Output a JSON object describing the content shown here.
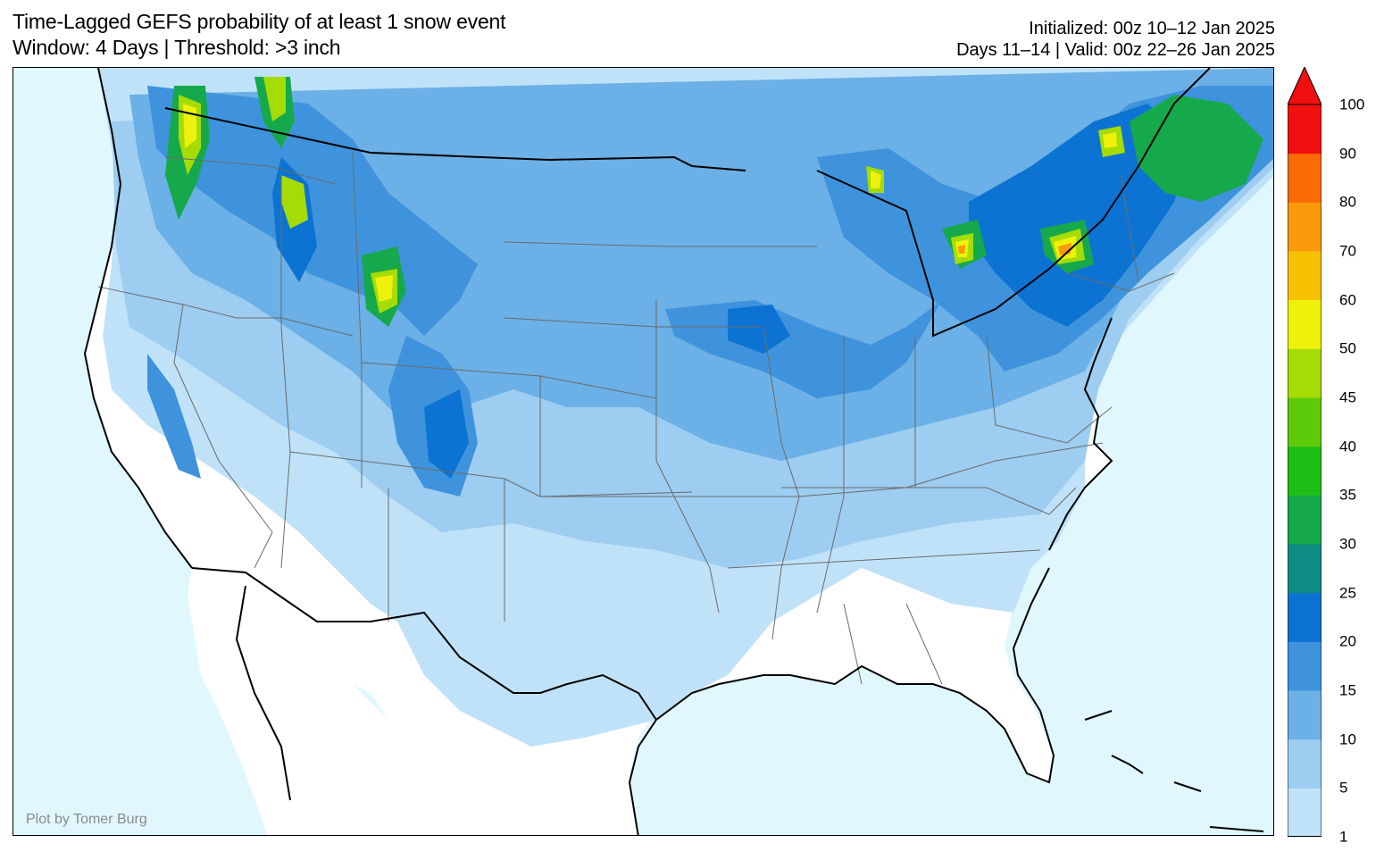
{
  "title": {
    "line1": "Time-Lagged GEFS probability of at least 1 snow event",
    "line2": "Window: 4 Days | Threshold: >3 inch"
  },
  "info": {
    "initialized": "Initialized: 00z 10–12 Jan 2025",
    "valid": "Days 11–14 | Valid: 00z 22–26 Jan 2025"
  },
  "credit": "Plot by Tomer Burg",
  "colorbar": {
    "levels": [
      "1",
      "5",
      "10",
      "15",
      "20",
      "25",
      "30",
      "35",
      "40",
      "45",
      "50",
      "60",
      "70",
      "80",
      "90",
      "100"
    ],
    "colors": [
      "#c0e2f8",
      "#9dcdf1",
      "#6bb0e6",
      "#3f93dc",
      "#0d73d2",
      "#0e8c83",
      "#16a94b",
      "#1dbe16",
      "#5dcb09",
      "#a5dc06",
      "#eef20b",
      "#f7c203",
      "#f99a0b",
      "#fa6a06",
      "#f11010"
    ]
  },
  "map": {
    "ocean_color": "#e0f7fe",
    "land_color": "#ffffff"
  }
}
